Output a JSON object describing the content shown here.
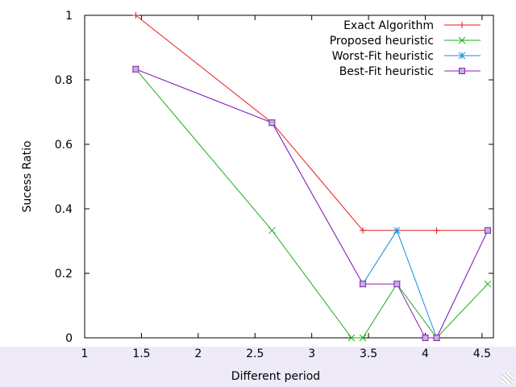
{
  "chart_data": {
    "type": "line",
    "xlabel": "Different period",
    "ylabel": "Sucess Ratio",
    "xlim": [
      1,
      4.6
    ],
    "ylim": [
      0,
      1
    ],
    "xticks": [
      "1",
      "1.5",
      "2",
      "2.5",
      "3",
      "3.5",
      "4",
      "4.5"
    ],
    "yticks": [
      "0",
      "0.2",
      "0.4",
      "0.6",
      "0.8",
      "1"
    ],
    "legend_position": "top-right",
    "grid": false,
    "series": [
      {
        "name": "Exact Algorithm",
        "color": "#e41a1c",
        "marker": "plus",
        "x": [
          1.45,
          2.65,
          3.45,
          4.1,
          4.55
        ],
        "y": [
          1.0,
          0.667,
          0.333,
          0.333,
          0.333
        ]
      },
      {
        "name": "Proposed heuristic",
        "color": "#1aaf1a",
        "marker": "cross",
        "x": [
          1.45,
          2.65,
          3.35,
          3.45,
          3.75,
          4.1,
          4.55
        ],
        "y": [
          0.833,
          0.333,
          0.0,
          0.0,
          0.167,
          0.0,
          0.167
        ]
      },
      {
        "name": "Worst-Fit heuristic",
        "color": "#1a8fd6",
        "marker": "star",
        "x": [
          1.45,
          2.65,
          3.45,
          3.75,
          4.1,
          4.55
        ],
        "y": [
          0.833,
          0.667,
          0.167,
          0.333,
          0.0,
          0.333
        ]
      },
      {
        "name": "Best-Fit heuristic",
        "color": "#9a1ab8",
        "marker": "box",
        "x": [
          1.45,
          2.65,
          3.45,
          3.75,
          4.0,
          4.1,
          4.55
        ],
        "y": [
          0.833,
          0.667,
          0.167,
          0.167,
          0.0,
          0.0,
          0.333
        ]
      }
    ]
  }
}
